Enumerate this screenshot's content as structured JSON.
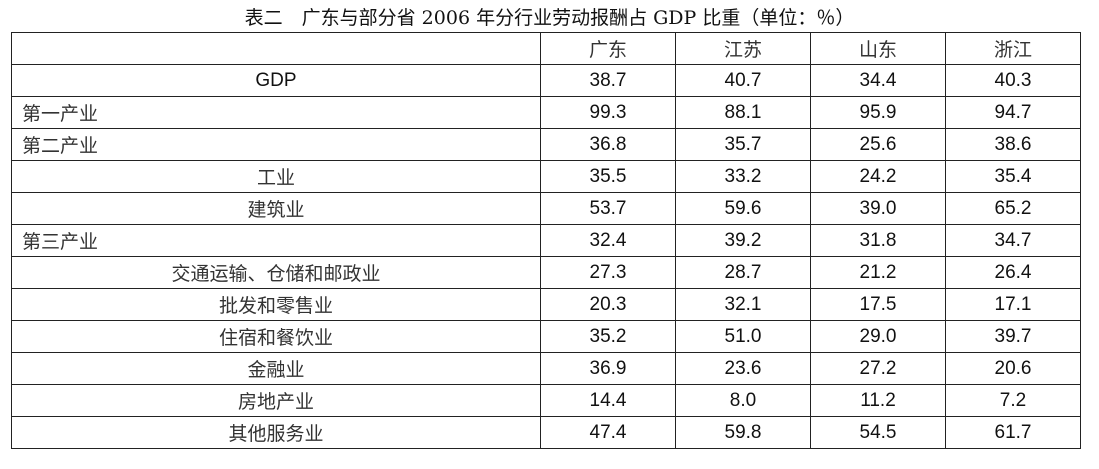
{
  "title": "表二　广东与部分省 2006 年分行业劳动报酬占 GDP 比重（单位：％）",
  "columns": [
    "",
    "广东",
    "江苏",
    "山东",
    "浙江"
  ],
  "rows": [
    {
      "label": "GDP",
      "align": "center-gdp",
      "values": [
        "38.7",
        "40.7",
        "34.4",
        "40.3"
      ]
    },
    {
      "label": "第一产业",
      "align": "left",
      "values": [
        "99.3",
        "88.1",
        "95.9",
        "94.7"
      ]
    },
    {
      "label": "第二产业",
      "align": "left",
      "values": [
        "36.8",
        "35.7",
        "25.6",
        "38.6"
      ]
    },
    {
      "label": "工业",
      "align": "center",
      "values": [
        "35.5",
        "33.2",
        "24.2",
        "35.4"
      ]
    },
    {
      "label": "建筑业",
      "align": "center",
      "values": [
        "53.7",
        "59.6",
        "39.0",
        "65.2"
      ]
    },
    {
      "label": "第三产业",
      "align": "left",
      "values": [
        "32.4",
        "39.2",
        "31.8",
        "34.7"
      ]
    },
    {
      "label": "交通运输、仓储和邮政业",
      "align": "center",
      "values": [
        "27.3",
        "28.7",
        "21.2",
        "26.4"
      ]
    },
    {
      "label": "批发和零售业",
      "align": "center",
      "values": [
        "20.3",
        "32.1",
        "17.5",
        "17.1"
      ]
    },
    {
      "label": "住宿和餐饮业",
      "align": "center",
      "values": [
        "35.2",
        "51.0",
        "29.0",
        "39.7"
      ]
    },
    {
      "label": "金融业",
      "align": "center",
      "values": [
        "36.9",
        "23.6",
        "27.2",
        "20.6"
      ]
    },
    {
      "label": "房地产业",
      "align": "center",
      "values": [
        "14.4",
        "8.0",
        "11.2",
        "7.2"
      ]
    },
    {
      "label": "其他服务业",
      "align": "center",
      "values": [
        "47.4",
        "59.8",
        "54.5",
        "61.7"
      ]
    }
  ]
}
